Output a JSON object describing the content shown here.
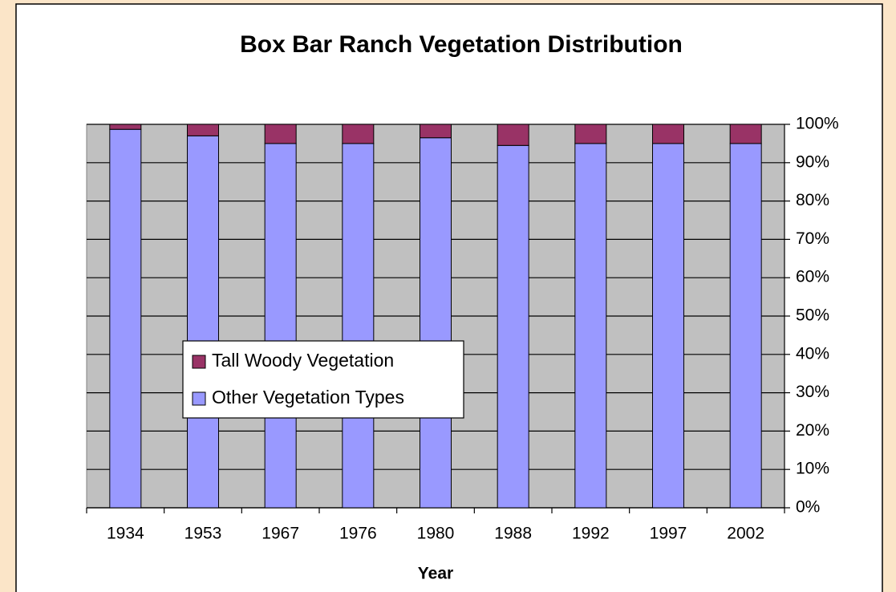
{
  "chart_data": {
    "type": "stacked_bar",
    "title": "Box Bar Ranch Vegetation Distribution",
    "x_label": "Year",
    "categories": [
      "1934",
      "1953",
      "1967",
      "1976",
      "1980",
      "1988",
      "1992",
      "1997",
      "2002"
    ],
    "series": [
      {
        "name": "Tall Woody Vegetation",
        "color": "#993366",
        "values": [
          1.3,
          3,
          5,
          5,
          3.5,
          5.5,
          5,
          5,
          5
        ]
      },
      {
        "name": "Other Vegetation Types",
        "color": "#9999ff",
        "values": [
          98.7,
          97,
          95,
          95,
          96.5,
          94.5,
          95,
          95,
          95
        ]
      }
    ],
    "ylim": [
      0,
      100
    ],
    "yticks": [
      {
        "value": 0,
        "label": "0%"
      },
      {
        "value": 10,
        "label": "10%"
      },
      {
        "value": 20,
        "label": "20%"
      },
      {
        "value": 30,
        "label": "30%"
      },
      {
        "value": 40,
        "label": "40%"
      },
      {
        "value": 50,
        "label": "50%"
      },
      {
        "value": 60,
        "label": "60%"
      },
      {
        "value": 70,
        "label": "70%"
      },
      {
        "value": 80,
        "label": "80%"
      },
      {
        "value": 90,
        "label": "90%"
      },
      {
        "value": 100,
        "label": "100%"
      }
    ],
    "grid": true,
    "plot_background": "#c0c0c0"
  }
}
